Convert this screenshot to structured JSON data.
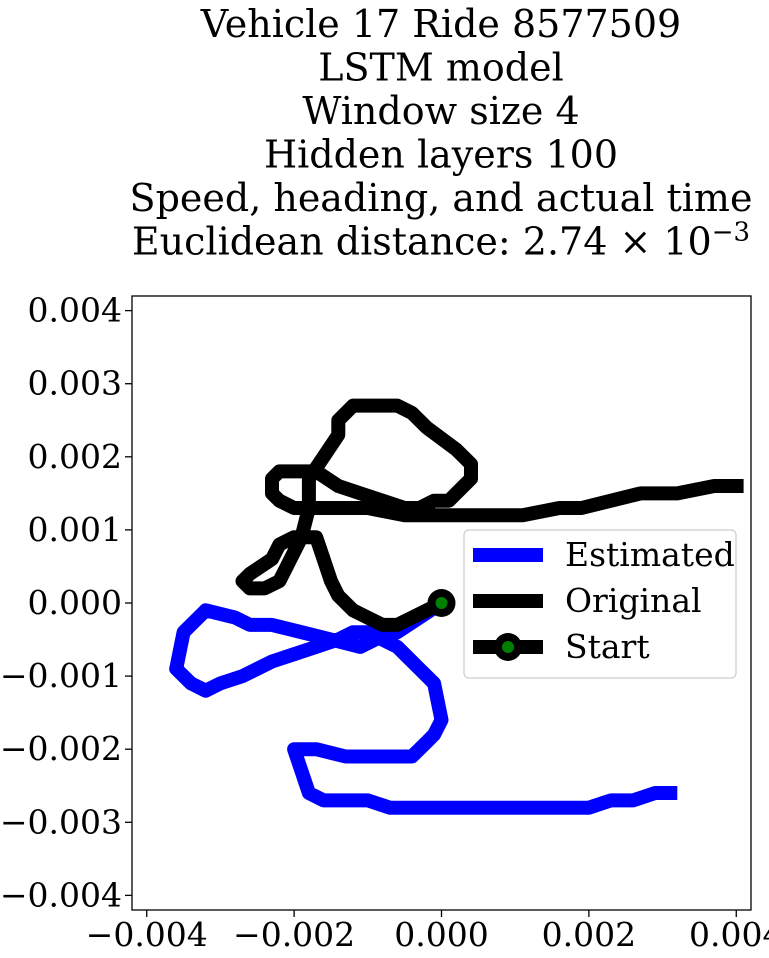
{
  "chart_data": {
    "type": "line",
    "title_lines": [
      "Vehicle 17 Ride 8577509",
      "LSTM model",
      "Window size 4",
      "Hidden layers 100",
      "Speed, heading, and actual time",
      "Euclidean distance: 2.74 × 10"
    ],
    "title_exponent": "−3",
    "xlabel": "",
    "ylabel": "",
    "xlim": [
      -0.0042,
      0.0042
    ],
    "ylim": [
      -0.0042,
      0.0042
    ],
    "xticks": [
      -0.004,
      -0.002,
      0.0,
      0.002,
      0.004
    ],
    "yticks": [
      0.004,
      0.003,
      0.002,
      0.001,
      0.0,
      -0.001,
      -0.002,
      -0.003,
      -0.004
    ],
    "xtick_labels": [
      "−0.004",
      "−0.002",
      "0.000",
      "0.002",
      "0.004"
    ],
    "ytick_labels": [
      "0.004",
      "0.003",
      "0.002",
      "0.001",
      "0.000",
      "−0.001",
      "−0.002",
      "−0.003",
      "−0.004"
    ],
    "grid": false,
    "legend_position": "center-right",
    "series": [
      {
        "name": "Estimated",
        "color": "#0000ff",
        "x": [
          0.0,
          -0.0003,
          -0.0006,
          -0.0009,
          -0.0011,
          -0.0015,
          -0.0019,
          -0.0023,
          -0.0026,
          -0.0028,
          -0.0032,
          -0.0035,
          -0.0036,
          -0.0034,
          -0.0032,
          -0.003,
          -0.0027,
          -0.0025,
          -0.0023,
          -0.002,
          -0.0017,
          -0.0014,
          -0.0012,
          -0.001,
          -0.0008,
          -0.0006,
          -0.0003,
          -0.0001,
          0.0,
          -0.0001,
          -0.0002,
          -0.0004,
          -0.0005,
          -0.0008,
          -0.001,
          -0.0013,
          -0.0017,
          -0.002,
          -0.0018,
          -0.0016,
          -0.0013,
          -0.001,
          -0.0007,
          -0.0003,
          0.0,
          0.0004,
          0.0009,
          0.0013,
          0.0016,
          0.002,
          0.0023,
          0.0026,
          0.0029,
          0.0032
        ],
        "y": [
          0.0,
          -0.0002,
          -0.0004,
          -0.0005,
          -0.0006,
          -0.0005,
          -0.0004,
          -0.0003,
          -0.0003,
          -0.0002,
          -0.0001,
          -0.0004,
          -0.0009,
          -0.0011,
          -0.0012,
          -0.0011,
          -0.001,
          -0.0009,
          -0.0008,
          -0.0007,
          -0.0006,
          -0.0005,
          -0.0004,
          -0.0004,
          -0.0005,
          -0.0006,
          -0.0009,
          -0.0011,
          -0.0016,
          -0.0018,
          -0.0019,
          -0.0021,
          -0.0021,
          -0.0021,
          -0.0021,
          -0.0021,
          -0.002,
          -0.002,
          -0.0026,
          -0.0027,
          -0.0027,
          -0.0027,
          -0.0028,
          -0.0028,
          -0.0028,
          -0.0028,
          -0.0028,
          -0.0028,
          -0.0028,
          -0.0028,
          -0.0027,
          -0.0027,
          -0.0026,
          -0.0026
        ]
      },
      {
        "name": "Original",
        "color": "#000000",
        "x": [
          0.0,
          -0.0002,
          -0.0004,
          -0.0006,
          -0.0008,
          -0.001,
          -0.0012,
          -0.0014,
          -0.0015,
          -0.0016,
          -0.0017,
          -0.0019,
          -0.002,
          -0.0022,
          -0.0023,
          -0.0026,
          -0.0027,
          -0.0026,
          -0.0024,
          -0.0022,
          -0.0021,
          -0.0019,
          -0.0018,
          -0.0018,
          -0.0016,
          -0.0014,
          -0.0014,
          -0.0013,
          -0.0012,
          -0.0011,
          -0.0009,
          -0.0006,
          -0.0004,
          -0.0002,
          0.0002,
          0.0004,
          0.0004,
          0.0003,
          0.0001,
          -0.0001,
          -0.0003,
          -0.0005,
          -0.0008,
          -0.0011,
          -0.0014,
          -0.0017,
          -0.002,
          -0.0022,
          -0.0023,
          -0.0023,
          -0.0022,
          -0.002,
          -0.0018,
          -0.0015,
          -0.001,
          -0.0005,
          0.0,
          0.0006,
          0.0011,
          0.0016,
          0.0019,
          0.0023,
          0.0027,
          0.0032,
          0.0037,
          0.0041
        ],
        "y": [
          0.0,
          -0.0001,
          -0.0002,
          -0.0003,
          -0.0003,
          -0.0002,
          -0.0001,
          0.0001,
          0.0003,
          0.0006,
          0.0009,
          0.0009,
          0.0009,
          0.0008,
          0.0006,
          0.0004,
          0.0003,
          0.0002,
          0.0002,
          0.0003,
          0.0005,
          0.0009,
          0.0013,
          0.0017,
          0.002,
          0.0023,
          0.0025,
          0.0026,
          0.0027,
          0.0027,
          0.0027,
          0.0027,
          0.0026,
          0.0024,
          0.0021,
          0.0019,
          0.0017,
          0.0016,
          0.0014,
          0.0014,
          0.0013,
          0.0013,
          0.0014,
          0.0015,
          0.0016,
          0.0018,
          0.0018,
          0.0018,
          0.0017,
          0.0015,
          0.0014,
          0.0013,
          0.0013,
          0.0013,
          0.0013,
          0.0012,
          0.0012,
          0.0012,
          0.0012,
          0.0013,
          0.0013,
          0.0014,
          0.0015,
          0.0015,
          0.0016,
          0.0016
        ]
      }
    ],
    "start_marker": {
      "name": "Start",
      "x": 0.0,
      "y": 0.0,
      "outer_color": "#000000",
      "inner_color": "#008000"
    }
  }
}
